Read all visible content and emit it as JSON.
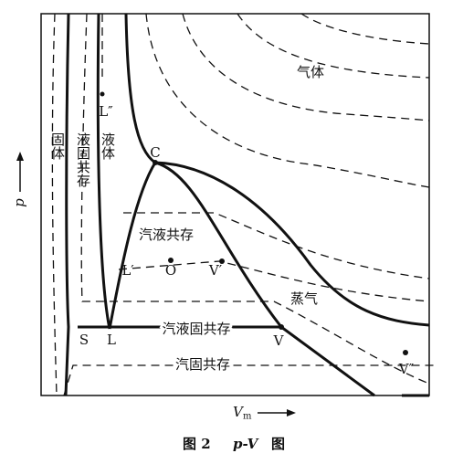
{
  "labels": {
    "gas": "气体",
    "l_double": "L″",
    "liquid": "液体",
    "solid": "固体",
    "solid_liquid": "液固共存",
    "critical": "C",
    "vapor_liquid": "汽液共存",
    "l_prime": "L′",
    "o": "O",
    "v_prime": "V′",
    "vapor": "蒸气",
    "s": "S",
    "l": "L",
    "triple": "汽液固共存",
    "v": "V",
    "vapor_solid": "汽固共存",
    "v_double": "V″"
  },
  "axes": {
    "y": "p",
    "x_symbol": "V",
    "x_subscript": "m"
  },
  "caption": {
    "figure": "图 2",
    "title": "p-V",
    "suffix": "图"
  }
}
